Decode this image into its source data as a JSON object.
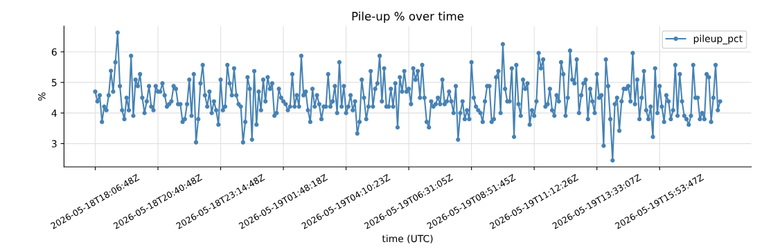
{
  "chart_data": {
    "type": "line",
    "title": "Pile-up % over time",
    "xlabel": "time (UTC)",
    "ylabel": "%",
    "categories": [
      "2026-05-18T18:06:48Z",
      null,
      null,
      null,
      null,
      null,
      null,
      null,
      null,
      null,
      null,
      null,
      null,
      null,
      null,
      null,
      null,
      null,
      null,
      null,
      null,
      null,
      null,
      null,
      null,
      null,
      null,
      null,
      "2026-05-18T20:40:48Z",
      null,
      null,
      null,
      null,
      null,
      null,
      null,
      null,
      null,
      null,
      null,
      null,
      null,
      null,
      null,
      null,
      null,
      null,
      null,
      null,
      null,
      null,
      null,
      null,
      null,
      null,
      null,
      "2026-05-18T23:14:48Z",
      null,
      null,
      null,
      null,
      null,
      null,
      null,
      null,
      null,
      null,
      null,
      null,
      null,
      null,
      null,
      null,
      null,
      null,
      null,
      null,
      null,
      null,
      null,
      null,
      null,
      null,
      null,
      "2026-05-19T01:48:18Z",
      null,
      null,
      null,
      null,
      null,
      null,
      null,
      null,
      null,
      null,
      null,
      null,
      null,
      null,
      null,
      null,
      null,
      null,
      null,
      null,
      null,
      null,
      null,
      null,
      null,
      null,
      null,
      "2026-05-19T04:10:23Z",
      null,
      null,
      null,
      null,
      null,
      null,
      null,
      null,
      null,
      null,
      null,
      null,
      null,
      null,
      null,
      null,
      null,
      null,
      null,
      null,
      null,
      null,
      null,
      null,
      null,
      null,
      null,
      "2026-05-19T06:31:05Z",
      null,
      null,
      null,
      null,
      null,
      null,
      null,
      null,
      null,
      null,
      null,
      null,
      null,
      null,
      null,
      null,
      null,
      null,
      null,
      null,
      null,
      null,
      null,
      null,
      null,
      null,
      null,
      "2026-05-19T08:51:45Z",
      null,
      null,
      null,
      null,
      null,
      null,
      null,
      null,
      null,
      null,
      null,
      null,
      null,
      null,
      null,
      null,
      null,
      null,
      null,
      null,
      null,
      null,
      null,
      null,
      null,
      null,
      null,
      "2026-05-19T11:12:26Z",
      null,
      null,
      null,
      null,
      null,
      null,
      null,
      null,
      null,
      null,
      null,
      null,
      null,
      null,
      null,
      null,
      null,
      null,
      null,
      null,
      null,
      null,
      null,
      null,
      null,
      null,
      null,
      "2026-05-19T13:33:07Z",
      null,
      null,
      null,
      null,
      null,
      null,
      null,
      null,
      null,
      null,
      null,
      null,
      null,
      null,
      null,
      null,
      null,
      null,
      null,
      null,
      null,
      null,
      null,
      null,
      null,
      null,
      null,
      "2026-05-19T15:53:47Z",
      null,
      null,
      null,
      null,
      null,
      null,
      null,
      null,
      null,
      null,
      null,
      null,
      null,
      null,
      null,
      null,
      null,
      null,
      null,
      null,
      null,
      null,
      null,
      null,
      null,
      null,
      null
    ],
    "series": [
      {
        "name": "pileup_pct",
        "color": "#4682b4",
        "values": [
          4.7,
          4.38,
          4.58,
          3.71,
          4.21,
          4.09,
          4.58,
          5.38,
          4.7,
          5.66,
          6.63,
          4.88,
          4.09,
          3.8,
          4.5,
          4.09,
          5.87,
          3.91,
          5.09,
          4.88,
          5.27,
          4.5,
          4.0,
          4.38,
          4.88,
          4.21,
          4.09,
          4.88,
          4.7,
          4.7,
          4.97,
          4.58,
          4.21,
          4.29,
          4.38,
          4.88,
          4.79,
          4.29,
          4.29,
          3.71,
          3.8,
          4.29,
          5.09,
          3.91,
          5.27,
          3.04,
          3.8,
          4.97,
          5.57,
          4.58,
          4.21,
          4.7,
          4.0,
          4.38,
          4.09,
          3.62,
          5.09,
          4.09,
          4.21,
          5.57,
          4.97,
          4.58,
          5.46,
          4.58,
          4.29,
          4.21,
          3.04,
          3.71,
          5.17,
          4.79,
          3.13,
          5.37,
          3.62,
          4.7,
          4.09,
          5.09,
          4.38,
          5.17,
          4.79,
          4.97,
          3.91,
          4.0,
          4.79,
          4.5,
          4.38,
          4.29,
          4.09,
          4.21,
          5.27,
          4.21,
          4.58,
          4.21,
          5.87,
          4.58,
          4.7,
          4.09,
          3.71,
          4.79,
          4.21,
          4.58,
          4.29,
          3.8,
          4.21,
          4.21,
          5.27,
          4.21,
          4.38,
          4.88,
          4.0,
          5.66,
          4.21,
          4.88,
          4.0,
          4.21,
          4.58,
          4.09,
          4.38,
          3.33,
          3.71,
          5.09,
          4.5,
          3.8,
          4.21,
          5.37,
          4.21,
          4.79,
          4.97,
          5.87,
          4.38,
          5.46,
          4.21,
          4.21,
          4.79,
          4.21,
          4.97,
          3.53,
          5.17,
          4.7,
          5.37,
          4.7,
          4.79,
          4.29,
          5.46,
          5.09,
          5.37,
          4.5,
          5.57,
          4.5,
          3.71,
          3.53,
          4.38,
          4.21,
          4.29,
          4.5,
          4.29,
          5.09,
          4.29,
          4.38,
          4.7,
          4.38,
          4.0,
          4.88,
          3.13,
          4.0,
          4.38,
          3.8,
          4.09,
          3.8,
          5.66,
          4.5,
          4.21,
          4.09,
          4.0,
          3.71,
          4.38,
          4.88,
          4.88,
          3.71,
          3.8,
          5.17,
          5.37,
          4.0,
          6.25,
          4.79,
          4.38,
          4.38,
          5.46,
          3.22,
          5.57,
          4.29,
          3.91,
          5.09,
          4.79,
          4.97,
          3.62,
          4.09,
          3.91,
          4.38,
          5.96,
          5.46,
          5.75,
          4.21,
          4.29,
          4.79,
          4.09,
          3.91,
          4.58,
          4.38,
          5.66,
          5.27,
          3.91,
          4.5,
          6.04,
          5.09,
          4.97,
          5.75,
          4.0,
          4.58,
          4.97,
          5.09,
          3.8,
          4.79,
          4.38,
          4.0,
          5.27,
          4.5,
          4.58,
          2.93,
          5.75,
          4.88,
          3.8,
          2.45,
          4.29,
          4.5,
          3.42,
          4.38,
          4.79,
          4.79,
          4.88,
          4.38,
          5.96,
          4.29,
          5.09,
          3.8,
          4.5,
          5.37,
          4.09,
          3.8,
          4.21,
          3.22,
          5.46,
          4.0,
          4.88,
          4.21,
          3.71,
          4.58,
          4.38,
          3.8,
          4.09,
          5.57,
          3.91,
          5.27,
          4.38,
          3.91,
          3.8,
          3.62,
          3.91,
          5.57,
          4.5,
          4.5,
          3.8,
          4.0,
          3.8,
          5.27,
          5.17,
          3.71,
          4.5,
          5.57,
          4.09,
          4.38
        ]
      }
    ],
    "ylim": [
      2.24,
      6.84
    ],
    "yticks": [
      3,
      4,
      5,
      6
    ],
    "grid": true,
    "legend": "top right",
    "marker": "circle",
    "line_style": "solid"
  }
}
